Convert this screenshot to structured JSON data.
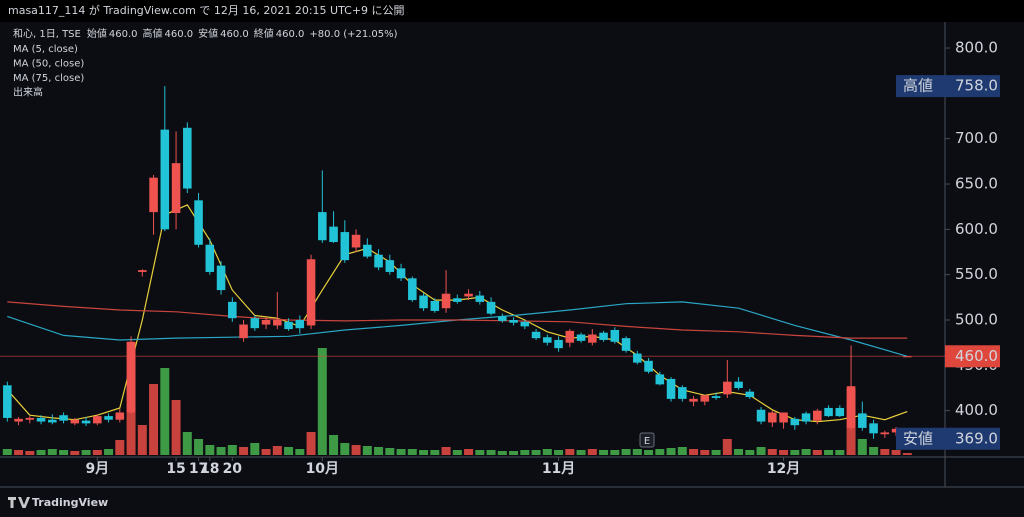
{
  "header": "masa117_114 が TradingView.com で 12月 16, 2021 20:15 UTC+9 に公開",
  "footer": "TradingView",
  "chart_data": {
    "type": "candlestick",
    "legend": {
      "symbol": "和心, 1日, TSE",
      "ohlc": [
        {
          "label": "始値",
          "value": "460.0"
        },
        {
          "label": "高値",
          "value": "460.0"
        },
        {
          "label": "安値",
          "value": "460.0"
        },
        {
          "label": "終値",
          "value": "460.0"
        }
      ],
      "change": "+80.0 (+21.05%)"
    },
    "x": [
      0,
      1,
      2,
      3,
      4,
      5,
      6,
      7,
      8,
      9,
      10,
      11,
      12,
      13,
      14,
      15,
      16,
      17,
      18,
      19,
      20,
      21,
      22,
      23,
      24,
      25,
      26,
      27,
      28,
      29,
      30,
      31,
      32,
      33,
      34,
      35,
      36,
      37,
      38,
      39,
      40,
      41,
      42,
      43,
      44,
      45,
      46,
      47,
      48,
      49,
      50,
      51,
      52,
      53,
      54,
      55,
      56,
      57,
      58,
      59,
      60,
      61,
      62,
      63,
      64,
      65,
      66,
      67,
      68,
      69,
      70,
      71,
      72,
      73,
      74,
      75,
      76,
      77,
      78,
      79,
      80
    ],
    "open": [
      428,
      388,
      390,
      392,
      390,
      395,
      386,
      389,
      386,
      394,
      390,
      398,
      553,
      619,
      710,
      618,
      712,
      632,
      583,
      560,
      520,
      480,
      502,
      495,
      494,
      498,
      500,
      494,
      619,
      603,
      597,
      580,
      583,
      572,
      566,
      557,
      546,
      527,
      521,
      513,
      524,
      526,
      527,
      520,
      504,
      500,
      498,
      487,
      481,
      478,
      475,
      484,
      475,
      486,
      489,
      480,
      463,
      455,
      440,
      435,
      426,
      410,
      410,
      416,
      418,
      432,
      421,
      401,
      387,
      387,
      391,
      397,
      389,
      403,
      403,
      381,
      397,
      386,
      374,
      376,
      460
    ],
    "high": [
      432,
      393,
      394,
      395,
      396,
      398,
      392,
      393,
      396,
      397,
      402,
      482,
      556,
      660,
      758,
      708,
      718,
      640,
      590,
      565,
      525,
      500,
      505,
      503,
      531,
      502,
      505,
      572,
      665,
      620,
      610,
      600,
      590,
      578,
      572,
      562,
      548,
      530,
      524,
      555,
      528,
      534,
      532,
      525,
      507,
      503,
      500,
      490,
      484,
      482,
      490,
      486,
      490,
      488,
      492,
      482,
      466,
      458,
      443,
      437,
      428,
      416,
      417,
      420,
      456,
      437,
      424,
      404,
      400,
      398,
      393,
      399,
      402,
      406,
      406,
      472,
      410,
      390,
      378,
      382,
      460
    ],
    "low": [
      388,
      384,
      386,
      385,
      385,
      386,
      384,
      383,
      384,
      387,
      387,
      396,
      548,
      594,
      598,
      600,
      640,
      580,
      550,
      528,
      498,
      476,
      488,
      490,
      490,
      488,
      485,
      490,
      585,
      585,
      563,
      575,
      568,
      555,
      550,
      543,
      520,
      510,
      508,
      508,
      518,
      522,
      517,
      505,
      497,
      494,
      490,
      478,
      472,
      465,
      470,
      475,
      472,
      476,
      474,
      464,
      451,
      441,
      428,
      410,
      410,
      405,
      406,
      412,
      414,
      423,
      413,
      385,
      382,
      380,
      379,
      385,
      385,
      393,
      393,
      378,
      378,
      369,
      370,
      372,
      460
    ],
    "close": [
      392,
      391,
      392,
      388,
      387,
      389,
      390,
      386,
      394,
      390,
      398,
      476,
      555,
      657,
      600,
      673,
      645,
      583,
      553,
      533,
      502,
      495,
      491,
      500,
      500,
      490,
      491,
      567,
      588,
      586,
      566,
      594,
      570,
      558,
      553,
      546,
      522,
      513,
      510,
      529,
      520,
      529,
      520,
      507,
      499,
      497,
      493,
      480,
      475,
      469,
      488,
      477,
      484,
      478,
      476,
      466,
      453,
      443,
      429,
      413,
      413,
      413,
      417,
      414,
      432,
      425,
      415,
      388,
      398,
      398,
      384,
      388,
      400,
      394,
      394,
      427,
      381,
      375,
      376,
      380,
      460
    ],
    "up_color": "#ef5350",
    "down_color": "#22c3d6",
    "volume": {
      "name": "出来高",
      "up_color": "#c8433d",
      "down_color": "#3f9a45",
      "ylim": [
        0,
        130
      ],
      "values": [
        6,
        5,
        4,
        5,
        6,
        5,
        4,
        5,
        5,
        6,
        15,
        113,
        30,
        71,
        87,
        55,
        23,
        16,
        10,
        8,
        10,
        8,
        12,
        6,
        9,
        8,
        6,
        23,
        107,
        20,
        12,
        10,
        9,
        8,
        7,
        6,
        6,
        5,
        5,
        8,
        5,
        6,
        5,
        5,
        4,
        4,
        5,
        5,
        6,
        5,
        6,
        5,
        6,
        5,
        5,
        6,
        6,
        5,
        6,
        7,
        8,
        6,
        5,
        5,
        16,
        6,
        5,
        8,
        6,
        5,
        5,
        6,
        5,
        5,
        5,
        67,
        16,
        8,
        6,
        5,
        2
      ]
    },
    "series": [
      {
        "name": "MA (5, close)",
        "color": "#e8cf3a",
        "x": [
          0,
          2,
          4,
          6,
          8,
          10,
          12,
          14,
          16,
          18,
          20,
          22,
          24,
          26,
          28,
          30,
          32,
          34,
          36,
          38,
          40,
          42,
          44,
          46,
          48,
          50,
          52,
          54,
          56,
          58,
          60,
          62,
          64,
          66,
          68,
          70,
          72,
          74,
          76,
          78,
          80
        ],
        "values": [
          423,
          395,
          392,
          390,
          395,
          403,
          500,
          616,
          627,
          588,
          533,
          505,
          502,
          493,
          533,
          572,
          579,
          564,
          539,
          522,
          522,
          525,
          511,
          500,
          487,
          480,
          482,
          478,
          461,
          439,
          423,
          417,
          421,
          417,
          401,
          390,
          388,
          390,
          395,
          390,
          399
        ]
      },
      {
        "name": "MA (50, close)",
        "color": "#2ba6c4",
        "x": [
          0,
          5,
          10,
          15,
          20,
          25,
          30,
          35,
          40,
          45,
          50,
          55,
          60,
          65,
          70,
          75,
          80
        ],
        "values": [
          504,
          483,
          478,
          480,
          481,
          482,
          489,
          494,
          500,
          505,
          511,
          518,
          520,
          513,
          494,
          478,
          460
        ]
      },
      {
        "name": "MA (75, close)",
        "color": "#c9453c",
        "x": [
          0,
          5,
          10,
          15,
          20,
          25,
          30,
          35,
          40,
          45,
          50,
          55,
          60,
          65,
          70,
          75,
          80
        ],
        "values": [
          520,
          515,
          511,
          509,
          504,
          500,
          499,
          500,
          500,
          499,
          498,
          493,
          489,
          487,
          483,
          480,
          480
        ]
      }
    ],
    "price_line": {
      "value": 460,
      "label": "460.0",
      "color": "#e0473c"
    },
    "markers": [
      {
        "name": "高値",
        "value": 758,
        "label": "758.0"
      },
      {
        "name": "安値",
        "value": 369,
        "label": "369.0"
      }
    ],
    "earnings_marker": "E",
    "xlim": [
      -0.65,
      83.35
    ],
    "ylim": [
      348.9,
      828.7
    ],
    "xticks": [
      {
        "value": 8,
        "label": "9月"
      },
      17,
      {
        "value": 28,
        "label": "10月"
      },
      18,
      {
        "value": 49,
        "label": "11月"
      },
      15,
      {
        "value": 69,
        "label": "12月"
      },
      20
    ],
    "yticks": [
      {
        "value": 400,
        "label": "400.0"
      },
      {
        "value": 450,
        "label": "450.0"
      },
      {
        "value": 500,
        "label": "500.0"
      },
      {
        "value": 550,
        "label": "550.0"
      },
      {
        "value": 600,
        "label": "600.0"
      },
      {
        "value": 650,
        "label": "650.0"
      },
      {
        "value": 700,
        "label": "700.0"
      },
      {
        "value": 800,
        "label": "800.0"
      }
    ],
    "grid": false
  }
}
